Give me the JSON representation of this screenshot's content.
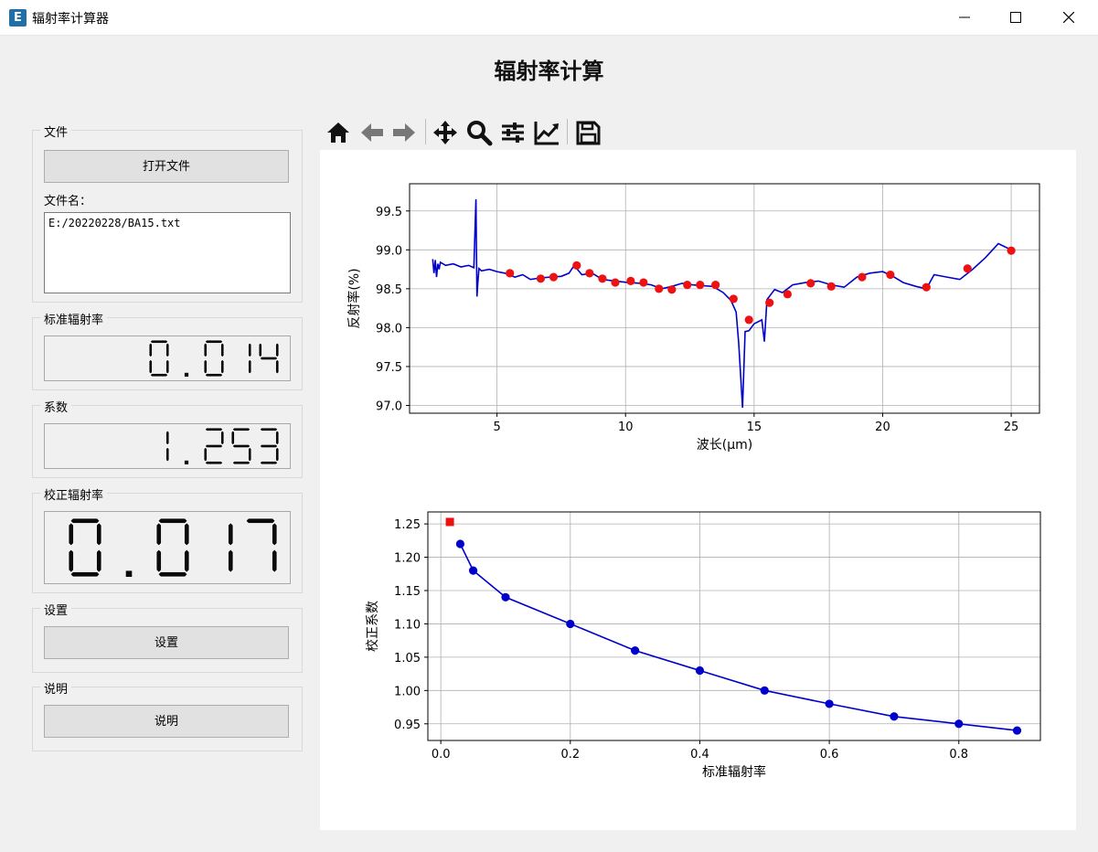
{
  "window": {
    "title": "辐射率计算器",
    "icon_letter": "E"
  },
  "main_title": "辐射率计算",
  "file_group": {
    "title": "文件",
    "open_button": "打开文件",
    "filename_label": "文件名：",
    "filename_value": "E:/20220228/BA15.txt"
  },
  "standard_group": {
    "title": "标准辐射率",
    "value": "0.014"
  },
  "coef_group": {
    "title": "系数",
    "value": "1.253"
  },
  "corrected_group": {
    "title": "校正辐射率",
    "value": "0.017"
  },
  "settings_group": {
    "title": "设置",
    "button": "设置"
  },
  "help_group": {
    "title": "说明",
    "button": "说明"
  },
  "toolbar": {
    "icons": [
      "home-icon",
      "back-arrow-icon",
      "forward-arrow-icon",
      "pan-icon",
      "zoom-icon",
      "configure-subplots-icon",
      "edit-axis-icon",
      "save-icon"
    ]
  },
  "colors": {
    "line": "#0000cc",
    "marker_red": "#ee1111",
    "marker_blue": "#0000cc"
  },
  "chart_data": [
    {
      "type": "line",
      "xlabel": "波长(μm)",
      "ylabel": "反射率(%)",
      "xlim": [
        1.6,
        26.1
      ],
      "ylim": [
        96.9,
        99.85
      ],
      "xticks": [
        5,
        10,
        15,
        20,
        25
      ],
      "yticks": [
        97.0,
        97.5,
        98.0,
        98.5,
        99.0,
        99.5
      ],
      "ytick_labels": [
        "97.0",
        "97.5",
        "98.0",
        "98.5",
        "99.0",
        "99.5"
      ],
      "grid": true,
      "series": [
        {
          "x": [
            2.5,
            2.55,
            2.6,
            2.65,
            2.7,
            2.75,
            2.8,
            3.0,
            3.3,
            3.6,
            3.9,
            4.1,
            4.18,
            4.22,
            4.25,
            4.3,
            4.4,
            4.7,
            5.0,
            5.3,
            5.7,
            6.0,
            6.3,
            6.7,
            7.1,
            7.5,
            7.8,
            8.0,
            8.3,
            8.7,
            9.1,
            9.6,
            10.1,
            10.6,
            11.0,
            11.4,
            11.8,
            12.2,
            12.6,
            13.0,
            13.4,
            13.8,
            14.1,
            14.3,
            14.4,
            14.55,
            14.65,
            14.8,
            15.0,
            15.3,
            15.4,
            15.5,
            15.8,
            16.1,
            16.5,
            17.0,
            17.5,
            18.0,
            18.5,
            19.0,
            19.5,
            20.0,
            20.4,
            20.8,
            21.3,
            21.7,
            22.0,
            22.5,
            23.0,
            23.5,
            24.0,
            24.5,
            25.0
          ],
          "y": [
            98.88,
            98.7,
            98.87,
            98.65,
            98.82,
            98.75,
            98.84,
            98.8,
            98.82,
            98.78,
            98.8,
            98.77,
            99.65,
            98.4,
            98.55,
            98.76,
            98.73,
            98.75,
            98.72,
            98.7,
            98.65,
            98.68,
            98.62,
            98.64,
            98.65,
            98.66,
            98.7,
            98.8,
            98.68,
            98.7,
            98.62,
            98.6,
            98.58,
            98.57,
            98.55,
            98.5,
            98.53,
            98.57,
            98.55,
            98.54,
            98.53,
            98.45,
            98.35,
            98.2,
            97.8,
            96.97,
            97.95,
            97.96,
            98.05,
            98.1,
            97.82,
            98.36,
            98.49,
            98.45,
            98.55,
            98.58,
            98.6,
            98.55,
            98.52,
            98.65,
            98.7,
            98.72,
            98.66,
            98.58,
            98.53,
            98.5,
            98.68,
            98.65,
            98.62,
            98.75,
            98.9,
            99.08,
            99.0
          ],
          "color": "#0000cc"
        },
        {
          "x": [
            5.5,
            6.7,
            7.2,
            8.1,
            8.6,
            9.1,
            9.6,
            10.2,
            10.7,
            11.3,
            11.8,
            12.4,
            12.9,
            13.5,
            14.2,
            14.8,
            15.6,
            16.3,
            17.2,
            18.0,
            19.2,
            20.3,
            21.7,
            23.3,
            25.0
          ],
          "y": [
            98.7,
            98.63,
            98.65,
            98.8,
            98.7,
            98.63,
            98.58,
            98.6,
            98.58,
            98.5,
            98.49,
            98.55,
            98.55,
            98.55,
            98.37,
            98.1,
            98.32,
            98.43,
            98.57,
            98.53,
            98.65,
            98.68,
            98.52,
            98.76,
            98.99
          ],
          "color": "#ee1111",
          "marker": "circle"
        }
      ]
    },
    {
      "type": "line",
      "xlabel": "标准辐射率",
      "ylabel": "校正系数",
      "xlim": [
        -0.02,
        0.926
      ],
      "ylim": [
        0.925,
        1.268
      ],
      "xticks": [
        0.0,
        0.2,
        0.4,
        0.6,
        0.8
      ],
      "xtick_labels": [
        "0.0",
        "0.2",
        "0.4",
        "0.6",
        "0.8"
      ],
      "yticks": [
        0.95,
        1.0,
        1.05,
        1.1,
        1.15,
        1.2,
        1.25
      ],
      "ytick_labels": [
        "0.95",
        "1.00",
        "1.05",
        "1.10",
        "1.15",
        "1.20",
        "1.25"
      ],
      "grid": true,
      "series": [
        {
          "x": [
            0.03,
            0.05,
            0.1,
            0.2,
            0.3,
            0.4,
            0.5,
            0.6,
            0.7,
            0.8,
            0.89
          ],
          "y": [
            1.22,
            1.18,
            1.14,
            1.1,
            1.06,
            1.03,
            1.0,
            0.98,
            0.961,
            0.95,
            0.94
          ],
          "color": "#0000cc",
          "marker": "circle"
        },
        {
          "x": [
            0.014
          ],
          "y": [
            1.253
          ],
          "color": "#ee1111",
          "marker": "square"
        }
      ]
    }
  ]
}
